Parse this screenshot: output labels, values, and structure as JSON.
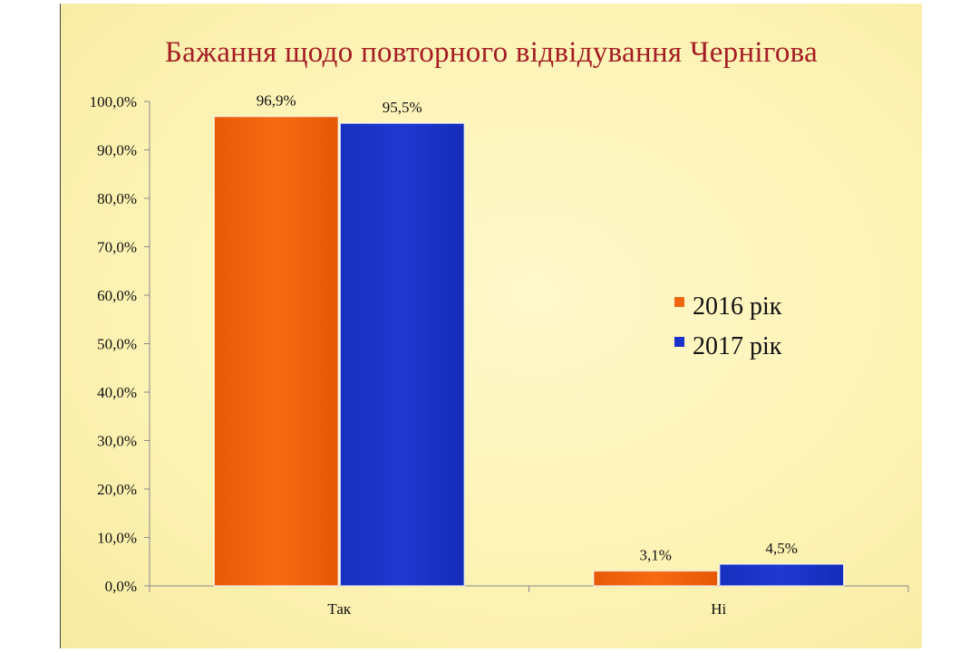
{
  "title": "Бажання щодо повторного відвідування Чернігова",
  "colors": {
    "series_2016": "#f26510",
    "series_2017": "#1b32c8",
    "title": "#a51d24"
  },
  "chart_data": {
    "type": "bar",
    "categories": [
      "Так",
      "Ні"
    ],
    "series": [
      {
        "name": "2016 рік",
        "values": [
          96.9,
          3.1
        ],
        "labels": [
          "96,9%",
          "3,1%"
        ]
      },
      {
        "name": "2017 рік",
        "values": [
          95.5,
          4.5
        ],
        "labels": [
          "95,5%",
          "4,5%"
        ]
      }
    ],
    "yticks": [
      "0,0%",
      "10,0%",
      "20,0%",
      "30,0%",
      "40,0%",
      "50,0%",
      "60,0%",
      "70,0%",
      "80,0%",
      "90,0%",
      "100,0%"
    ],
    "ylim": [
      0,
      100
    ],
    "grid": false,
    "legend": "right"
  }
}
